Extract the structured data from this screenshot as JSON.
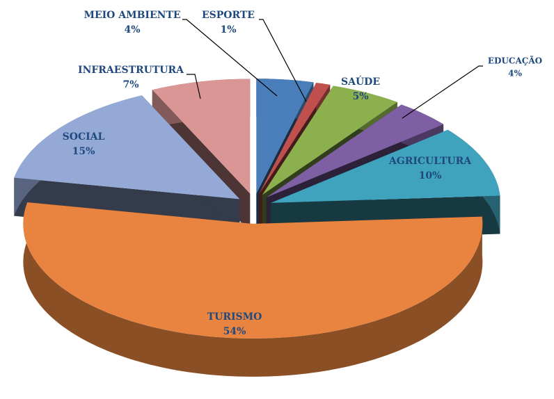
{
  "chart_data": {
    "type": "pie",
    "categories": [
      "MEIO AMBIENTE",
      "ESPORTE",
      "SAÚDE",
      "EDUCAÇÃO",
      "AGRICULTURA",
      "TURISMO",
      "SOCIAL",
      "INFRAESTRUTURA"
    ],
    "values": [
      4,
      1,
      5,
      4,
      10,
      54,
      15,
      7
    ],
    "value_labels": [
      "4%",
      "1%",
      "5%",
      "4%",
      "10%",
      "54%",
      "15%",
      "7%"
    ],
    "colors": [
      "#4a7ebb",
      "#c0504d",
      "#8cb04d",
      "#7e5fa3",
      "#3fa3bd",
      "#e8843f",
      "#94a9d6",
      "#d99694"
    ]
  }
}
